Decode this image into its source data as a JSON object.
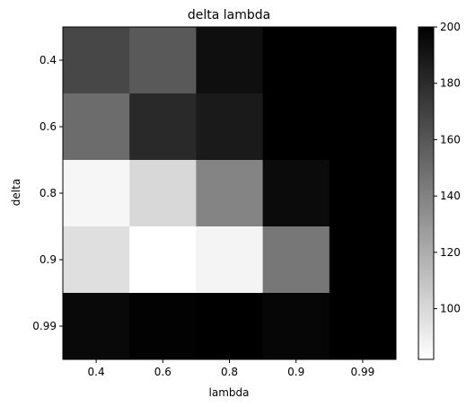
{
  "chart_data": {
    "type": "heatmap",
    "title": "delta lambda",
    "xlabel": "lambda",
    "ylabel": "delta",
    "x_categories": [
      "0.4",
      "0.6",
      "0.8",
      "0.9",
      "0.99"
    ],
    "y_categories": [
      "0.4",
      "0.6",
      "0.8",
      "0.9",
      "0.99"
    ],
    "values": [
      [
        167,
        159,
        193,
        200,
        200
      ],
      [
        150,
        181,
        188,
        200,
        200
      ],
      [
        86,
        100,
        139,
        195,
        200
      ],
      [
        97,
        82,
        87,
        145,
        200
      ],
      [
        196,
        199,
        200,
        197,
        200
      ]
    ],
    "colormap": "gray_r",
    "vmin": 82,
    "vmax": 200,
    "colorbar": {
      "ticks": [
        100,
        120,
        140,
        160,
        180,
        200
      ],
      "tick_labels": [
        "100",
        "120",
        "140",
        "160",
        "180",
        "200"
      ]
    }
  }
}
